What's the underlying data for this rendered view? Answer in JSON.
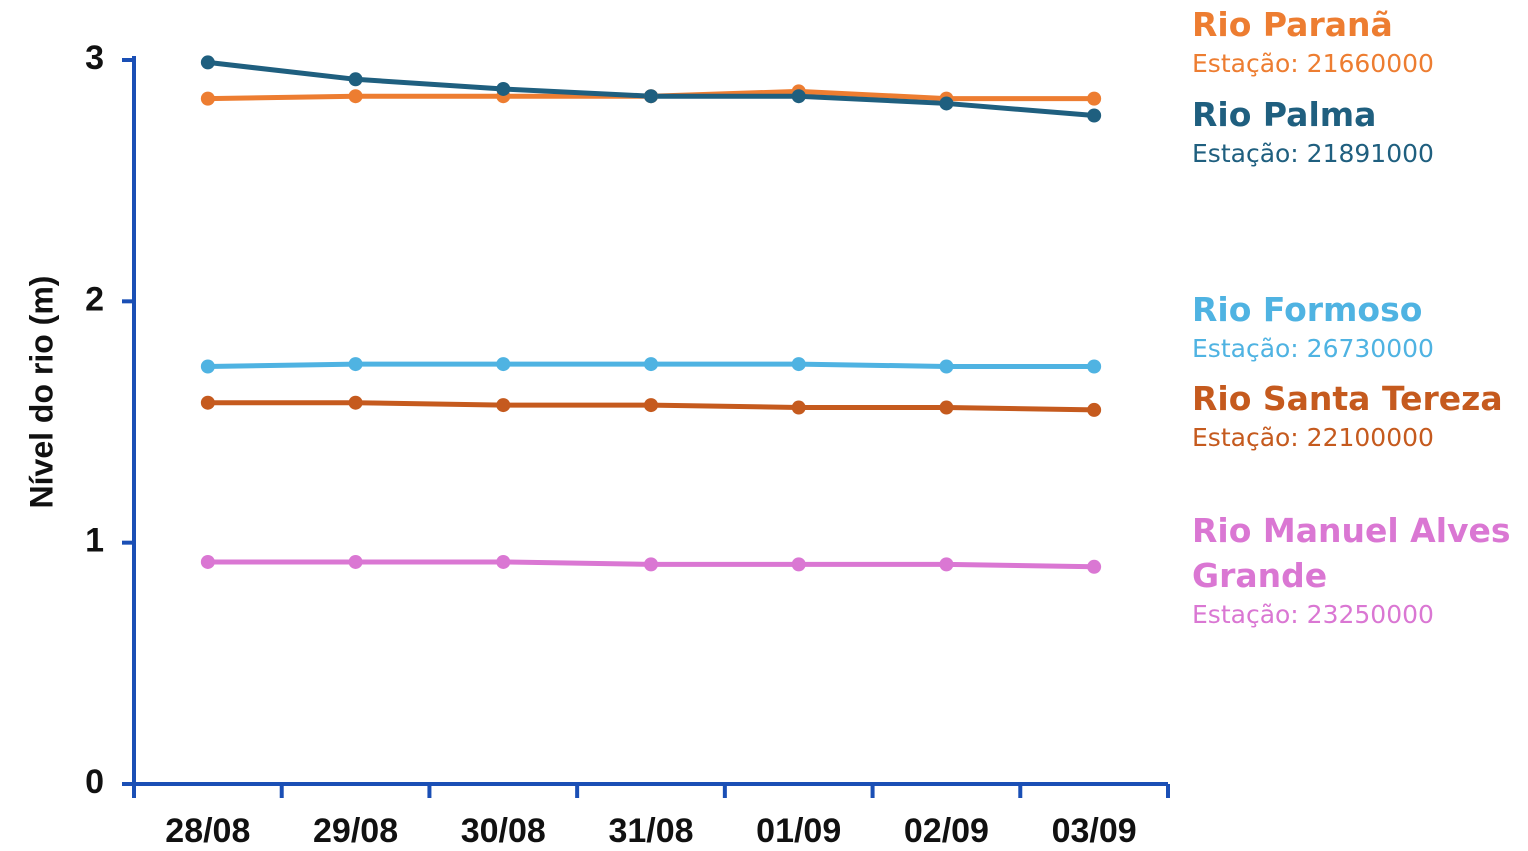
{
  "chart_data": {
    "type": "line",
    "title": "",
    "xlabel": "",
    "ylabel": "Nível do rio (m)",
    "categories": [
      "28/08",
      "29/08",
      "30/08",
      "31/08",
      "01/09",
      "02/09",
      "03/09"
    ],
    "ylim": [
      0,
      3
    ],
    "yticks": [
      0,
      1,
      2,
      3
    ],
    "grid": false,
    "legend_position": "right",
    "series": [
      {
        "name": "Rio Paranã",
        "station": "Estação: 21660000",
        "color": "#ED7D31",
        "values": [
          2.84,
          2.85,
          2.85,
          2.85,
          2.87,
          2.84,
          2.84
        ]
      },
      {
        "name": "Rio Palma",
        "station": "Estação: 21891000",
        "color": "#1F5F7F",
        "values": [
          2.99,
          2.92,
          2.88,
          2.85,
          2.85,
          2.82,
          2.77
        ]
      },
      {
        "name": "Rio Formoso",
        "station": "Estação: 26730000",
        "color": "#4FB3E2",
        "values": [
          1.73,
          1.74,
          1.74,
          1.74,
          1.74,
          1.73,
          1.73
        ]
      },
      {
        "name": "Rio Santa Tereza",
        "station": "Estação: 22100000",
        "color": "#C55A1E",
        "values": [
          1.58,
          1.58,
          1.57,
          1.57,
          1.56,
          1.56,
          1.55
        ]
      },
      {
        "name": "Rio Manuel Alves Grande",
        "station": "Estação: 23250000",
        "color": "#DA77D3",
        "values": [
          0.92,
          0.92,
          0.92,
          0.91,
          0.91,
          0.91,
          0.9
        ]
      }
    ],
    "axis_color": "#1A4FB5"
  }
}
